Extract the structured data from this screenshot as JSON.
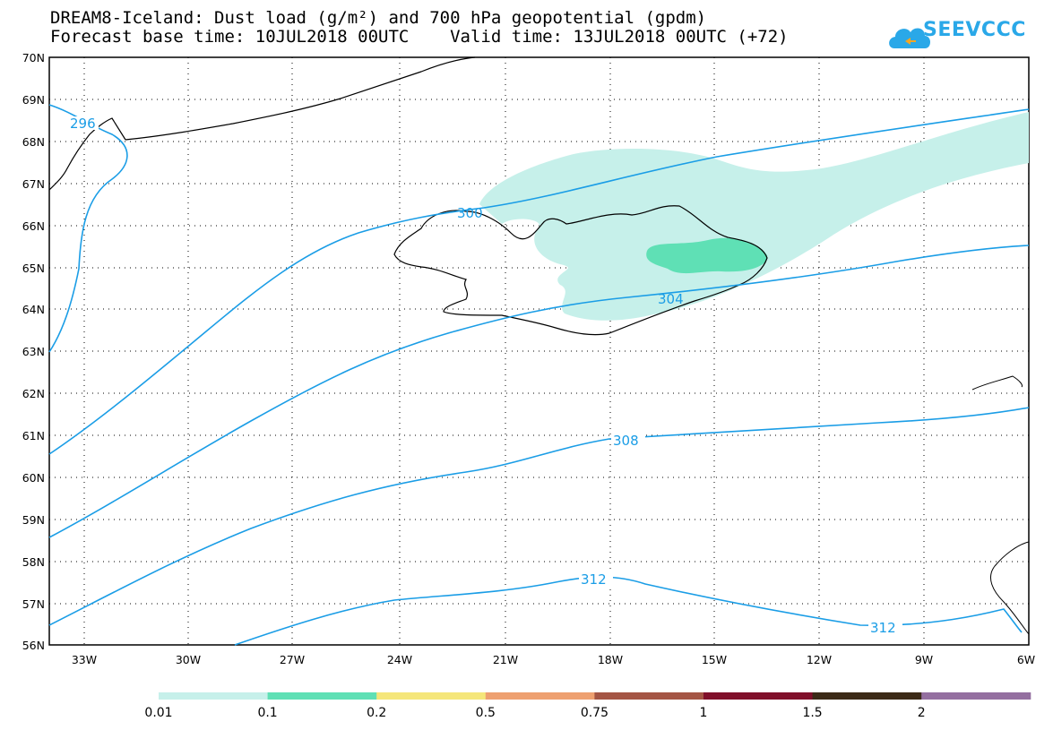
{
  "title": {
    "line1": "DREAM8-Iceland: Dust load (g/m²) and 700 hPa geopotential (gpdm)",
    "line2": "Forecast base time: 10JUL2018 00UTC    Valid time: 13JUL2018 00UTC (+72)"
  },
  "logo": {
    "text": "SEEVCCC"
  },
  "map": {
    "lon_range": [
      -34.4,
      -6.0
    ],
    "lat_range": [
      56,
      70
    ],
    "lat_labels": [
      "70N",
      "69N",
      "68N",
      "67N",
      "66N",
      "65N",
      "64N",
      "63N",
      "62N",
      "61N",
      "60N",
      "59N",
      "58N",
      "57N",
      "56N"
    ],
    "lon_labels": [
      "33W",
      "30W",
      "27W",
      "24W",
      "21W",
      "18W",
      "15W",
      "12W",
      "9W",
      "6W"
    ],
    "contour_color": "#1a9de6",
    "contour_labels": [
      "296",
      "300",
      "304",
      "308",
      "312",
      "312"
    ]
  },
  "legend": {
    "thresholds": [
      "0.01",
      "0.1",
      "0.2",
      "0.5",
      "0.75",
      "1",
      "1.5",
      "2"
    ],
    "colors": [
      "#c6f0ea",
      "#5fe0b5",
      "#f5e67a",
      "#eea070",
      "#a45544",
      "#800f2a",
      "#3c2a17",
      "#946fa0"
    ]
  }
}
